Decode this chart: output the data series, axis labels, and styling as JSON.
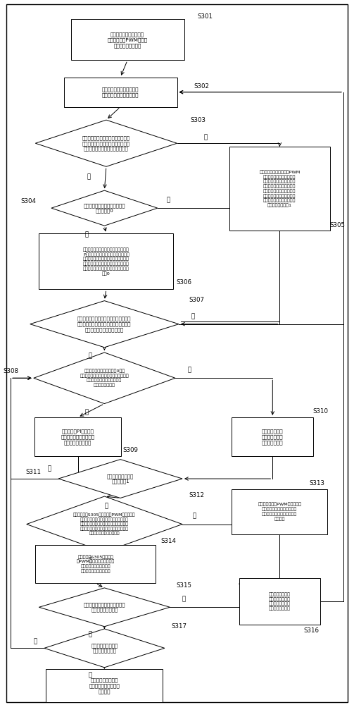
{
  "label_S301": "机器人启动运动时，对驱\n动轮配置初始PWM信号占\n空比和最终目标速度",
  "label_S302": "根据驱动轮的码盘读数确定\n出机器人处于刹车减速状态",
  "label_S303": "判断机器人的驱动轮的当前行走速度\n与当前调节周期内配置的目标速度的\n速度差值是否大于刹车速度差阈值",
  "label_S304": "判断当前调节周期内配置的目标\n速度是否为0",
  "label_S305": "将所述驱动轮当前获得的PWM\n信号占空比反向处理以降低\n机器人的驱动轮的当前行走\n速度，使得机器人的驱动轮\n的当前行走速度与当前调节\n周期内配置的目标速度的速\n度差得到缩小，并将急刹车\n标志位设置为逻辑1",
  "label_S306": "对机器人的驱动轮的当前行走速度进行\nP调节以降低所述驱动轮的当前行走速\n度，使得机器人的驱动轮的行走速度与\n当前调节周期内配置的目标速度的速度\n差得到缩小，并将急刹车标志位设置为\n逻辑0",
  "label_S307": "判断降低后的当前行走速度与当前调节周\n期下配置的目标速度的速度差值的绝对值\n是否缩小为所述系统允许误差",
  "label_S308": "将急刹车标志位设置为逻辑0，并\n判断当前调节周期下配置的目标速度是否\n小于所述驱动轮的码盘被允许\n读取的最低速度值",
  "label_S309": "使用增量式PI调节的方\n式，去调节降低最新调节\n获得的当前行走速度",
  "label_S310": "低速开环调节更\n新最新调节获得\n的当前行走速度",
  "label_S311": "判断急刹车标志位是\n否置为逻辑1",
  "label_S312": "判断前述步骤S305更新调节的PWM信号占空比\n所控制的驱动轮的速度变化量的方向是否与\n所述最终目标速度的方向相反，且判断这个\n速度变化量的大小是否大于对应步骤更新之\n前的驱动轮的行走速度大小",
  "label_S313": "将更新调节过的PWM信号占空比\n输出至所述驱动轮对应的系统\n驱动层，实现机器人的行走速\n度的控制",
  "label_S314": "将前述步骤S305更新调节\n的PWM信号占空比所控制的\n驱动轮的速度变化量的方\n向调节为与其相反的方向",
  "label_S315": "判断是否已经完成最后一个调节\n调节周期的速度调节",
  "label_S316": "将当前调节周期下\n配置的目标速度更\n新为下一调节周期\n下配置的目标速度",
  "label_S317": "判断机器人是否保持\n执行刹车减速运动",
  "label_S318": "结束机器人在当前的\n刹车运动模式下的速度\n调节操作",
  "yes": "是",
  "no": "否"
}
